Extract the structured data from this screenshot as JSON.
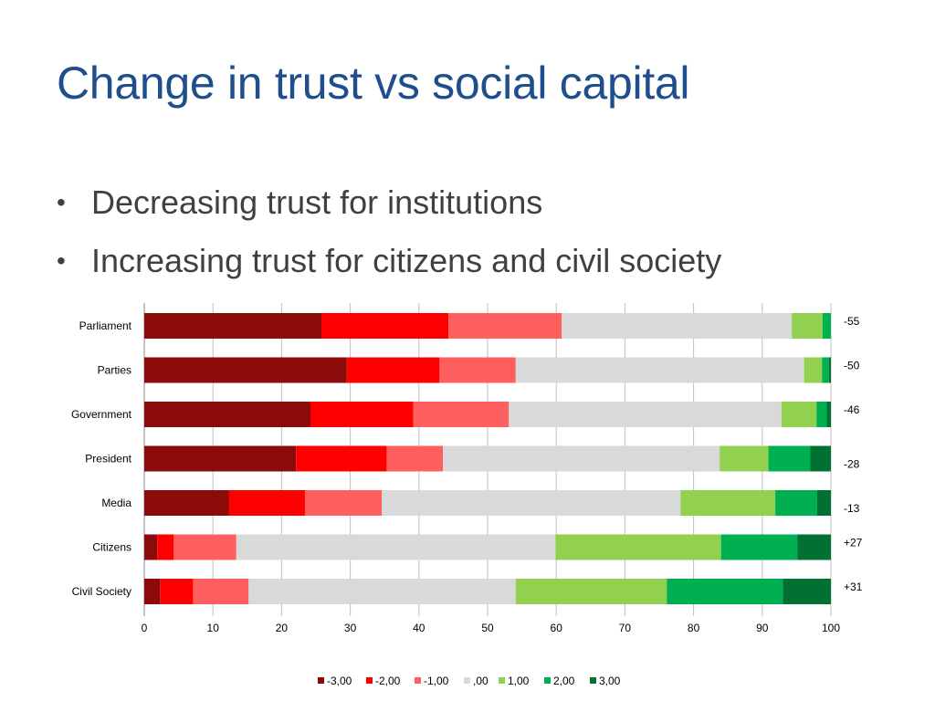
{
  "slide": {
    "title": "Change in trust vs social capital",
    "bullets": [
      "Decreasing trust for institutions",
      "Increasing trust for citizens and civil society"
    ]
  },
  "chart_data": {
    "type": "bar",
    "orientation": "horizontal",
    "stacked": true,
    "categories": [
      "Parliament",
      "Parties",
      "Government",
      "President",
      "Media",
      "Citizens",
      "Civil Society"
    ],
    "series": [
      {
        "name": "-3,00",
        "color": "#8b0a0a",
        "values": [
          25.8,
          29.5,
          24.2,
          22.1,
          12.3,
          1.9,
          2.3
        ]
      },
      {
        "name": "-2,00",
        "color": "#ff0000",
        "values": [
          18.5,
          13.5,
          15.0,
          13.2,
          11.1,
          2.4,
          4.8
        ]
      },
      {
        "name": "-1,00",
        "color": "#ff5f5f",
        "values": [
          16.5,
          11.1,
          13.9,
          8.2,
          11.2,
          9.1,
          8.1
        ]
      },
      {
        "name": ",00",
        "color": "#d9d9d9",
        "values": [
          33.5,
          42.0,
          39.7,
          40.3,
          43.5,
          46.5,
          38.9
        ]
      },
      {
        "name": "1,00",
        "color": "#92d050",
        "values": [
          4.5,
          2.6,
          5.1,
          7.1,
          13.8,
          24.1,
          22.0
        ]
      },
      {
        "name": "2,00",
        "color": "#00b050",
        "values": [
          1.2,
          1.0,
          1.5,
          6.1,
          6.1,
          11.1,
          16.9
        ]
      },
      {
        "name": "3,00",
        "color": "#007033",
        "values": [
          0.0,
          0.3,
          0.6,
          3.0,
          2.0,
          4.9,
          7.0
        ]
      }
    ],
    "annotations": [
      "-55",
      "-50",
      "-46",
      "-28",
      "-13",
      "+27",
      "+31"
    ],
    "xlim": [
      0,
      100
    ],
    "xticks": [
      "0",
      "10",
      "20",
      "30",
      "40",
      "50",
      "60",
      "70",
      "80",
      "90",
      "100"
    ],
    "grid": true,
    "legend": "bottom"
  }
}
